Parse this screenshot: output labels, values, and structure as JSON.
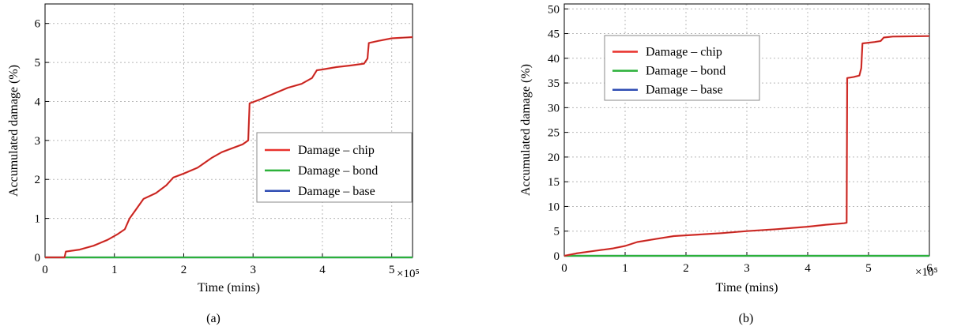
{
  "chart_data": [
    {
      "type": "line",
      "caption": "(a)",
      "xlabel": "Time (mins)",
      "ylabel": "Accumulated damage (%)",
      "x_multiplier": "×10⁵",
      "xlim": [
        0,
        5.3
      ],
      "ylim": [
        0,
        6.5
      ],
      "xticks": [
        0,
        1,
        2,
        3,
        4,
        5
      ],
      "yticks": [
        0,
        1,
        2,
        3,
        4,
        5,
        6
      ],
      "grid": true,
      "legend_position": "right",
      "series": [
        {
          "name": "Damage – chip",
          "color": "#e8322d",
          "x": [
            0,
            0.28,
            0.3,
            0.5,
            0.7,
            0.9,
            1.05,
            1.15,
            1.22,
            1.3,
            1.42,
            1.6,
            1.75,
            1.85,
            2.0,
            2.2,
            2.4,
            2.55,
            2.7,
            2.85,
            2.93,
            2.95,
            3.1,
            3.3,
            3.5,
            3.7,
            3.85,
            3.92,
            4.0,
            4.2,
            4.4,
            4.6,
            4.65,
            4.67,
            4.8,
            5.0,
            5.3
          ],
          "y": [
            0.0,
            0.0,
            0.15,
            0.2,
            0.3,
            0.45,
            0.6,
            0.72,
            1.0,
            1.2,
            1.5,
            1.65,
            1.85,
            2.05,
            2.15,
            2.3,
            2.55,
            2.7,
            2.8,
            2.9,
            3.0,
            3.95,
            4.05,
            4.2,
            4.35,
            4.45,
            4.6,
            4.8,
            4.82,
            4.88,
            4.92,
            4.97,
            5.1,
            5.5,
            5.55,
            5.62,
            5.65
          ]
        },
        {
          "name": "Damage – bond",
          "color": "#2cb13a",
          "x": [
            0,
            5.3
          ],
          "y": [
            0,
            0
          ]
        },
        {
          "name": "Damage – base",
          "color": "#2f4db3",
          "x": [
            0,
            5.3
          ],
          "y": [
            0,
            0
          ]
        }
      ]
    },
    {
      "type": "line",
      "caption": "(b)",
      "xlabel": "Time (mins)",
      "ylabel": "Accumulated damage (%)",
      "x_multiplier": "×10⁵",
      "xlim": [
        0,
        6
      ],
      "ylim": [
        0,
        51
      ],
      "xticks": [
        0,
        1,
        2,
        3,
        4,
        5,
        6
      ],
      "yticks": [
        0,
        5,
        10,
        15,
        20,
        25,
        30,
        35,
        40,
        45,
        50
      ],
      "grid": true,
      "legend_position": "top-left",
      "series": [
        {
          "name": "Damage – chip",
          "color": "#e8322d",
          "x": [
            0,
            0.2,
            0.5,
            0.8,
            1.0,
            1.2,
            1.5,
            1.8,
            2.2,
            2.6,
            3.0,
            3.5,
            4.0,
            4.3,
            4.6,
            4.64,
            4.65,
            4.75,
            4.85,
            4.88,
            4.9,
            5.1,
            5.2,
            5.25,
            5.4,
            6.0
          ],
          "y": [
            0,
            0.5,
            1.0,
            1.5,
            2.0,
            2.8,
            3.4,
            4.0,
            4.3,
            4.6,
            5.0,
            5.4,
            5.9,
            6.3,
            6.6,
            6.7,
            36.0,
            36.2,
            36.5,
            38.0,
            43.0,
            43.3,
            43.5,
            44.2,
            44.4,
            44.5
          ]
        },
        {
          "name": "Damage – bond",
          "color": "#2cb13a",
          "x": [
            0,
            6
          ],
          "y": [
            0,
            0
          ]
        },
        {
          "name": "Damage – base",
          "color": "#2f4db3",
          "x": [
            0,
            6
          ],
          "y": [
            0,
            0
          ]
        }
      ]
    }
  ]
}
